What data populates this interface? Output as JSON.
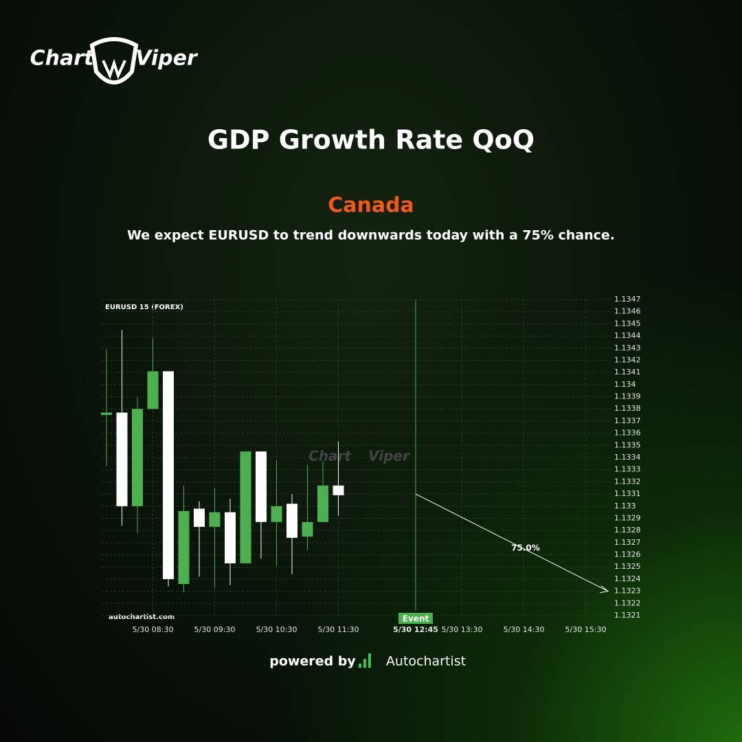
{
  "branding": {
    "logo": [
      "Chart",
      "Viper"
    ],
    "powered_by": "powered by",
    "provider": "Autochartist"
  },
  "chart_data": {
    "type": "candlestick",
    "title": "GDP Growth Rate QoQ",
    "subtitle": "Canada",
    "description": "We expect EURUSD to trend downwards today with a 75% chance.",
    "instrument": "EURUSD 15 (FOREX)",
    "source": "autochartist.com",
    "x": [
      "5/30 07:45",
      "5/30 08:00",
      "5/30 08:15",
      "5/30 08:30",
      "5/30 08:45",
      "5/30 09:00",
      "5/30 09:15",
      "5/30 09:30",
      "5/30 09:45",
      "5/30 10:00",
      "5/30 10:15",
      "5/30 10:30",
      "5/30 10:45",
      "5/30 11:00",
      "5/30 11:15",
      "5/30 11:30"
    ],
    "open": [
      1.13375,
      1.13377,
      1.133,
      1.1338,
      1.13411,
      1.13236,
      1.13298,
      1.13283,
      1.13295,
      1.13253,
      1.13345,
      1.13287,
      1.13302,
      1.13275,
      1.13287,
      1.13317
    ],
    "high": [
      1.13429,
      1.13445,
      1.1339,
      1.13438,
      1.13411,
      1.13317,
      1.13304,
      1.13315,
      1.13306,
      1.13345,
      1.13345,
      1.13338,
      1.1331,
      1.13334,
      1.13337,
      1.13353
    ],
    "low": [
      1.13333,
      1.13284,
      1.13278,
      1.1338,
      1.13234,
      1.13229,
      1.13242,
      1.13233,
      1.13235,
      1.13253,
      1.13257,
      1.13251,
      1.13244,
      1.13264,
      1.13287,
      1.13292
    ],
    "close": [
      1.13377,
      1.133,
      1.1338,
      1.13411,
      1.1324,
      1.13296,
      1.13283,
      1.13295,
      1.13253,
      1.13345,
      1.13287,
      1.133,
      1.13274,
      1.13287,
      1.13317,
      1.13309
    ],
    "up_color": "#4caf50",
    "down_color": "#ffffff",
    "ylim": [
      1.1321,
      1.1347
    ],
    "yticks": [
      1.1321,
      1.1322,
      1.1323,
      1.1324,
      1.1325,
      1.1326,
      1.1327,
      1.1328,
      1.1329,
      1.133,
      1.1331,
      1.1332,
      1.1333,
      1.1334,
      1.1335,
      1.1336,
      1.1337,
      1.1338,
      1.1339,
      1.134,
      1.1341,
      1.1342,
      1.1343,
      1.1344,
      1.1345,
      1.1346,
      1.1347
    ],
    "yticks_labels_note_free": null,
    "xticks": [
      "5/30 08:30",
      "5/30 09:30",
      "5/30 10:30",
      "5/30 11:30",
      "5/30 13:30",
      "5/30 14:30",
      "5/30 15:30"
    ],
    "event": {
      "x": "5/30 12:45",
      "label": "Event"
    },
    "projection": {
      "values": [
        1.1331,
        1.1323
      ],
      "label": "75.0%"
    },
    "grid": true
  }
}
